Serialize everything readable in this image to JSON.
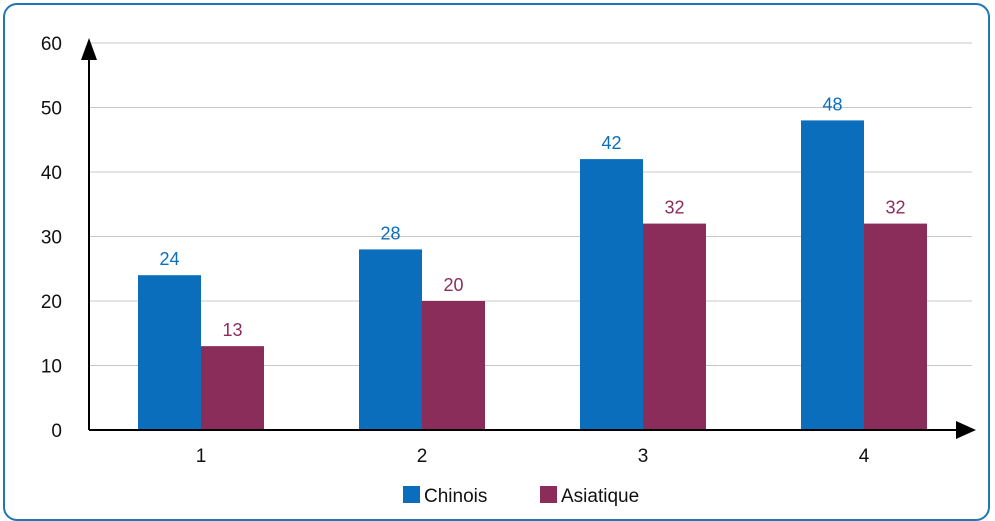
{
  "chart_data": {
    "type": "bar",
    "title": "",
    "xlabel": "",
    "ylabel": "",
    "categories": [
      "1",
      "2",
      "3",
      "4"
    ],
    "ylim": [
      0,
      60
    ],
    "yticks": [
      0,
      10,
      20,
      30,
      40,
      50,
      60
    ],
    "grid": true,
    "legend_position": "bottom-center",
    "series": [
      {
        "name": "Chinois",
        "values": [
          24,
          28,
          42,
          48
        ],
        "color": "#0b6ebd"
      },
      {
        "name": "Asiatique",
        "values": [
          13,
          20,
          32,
          32
        ],
        "color": "#8b2d5a"
      }
    ],
    "colors": {
      "frame": "#1f77b4",
      "grid": "#c8c8c8",
      "axis": "#000000"
    }
  }
}
